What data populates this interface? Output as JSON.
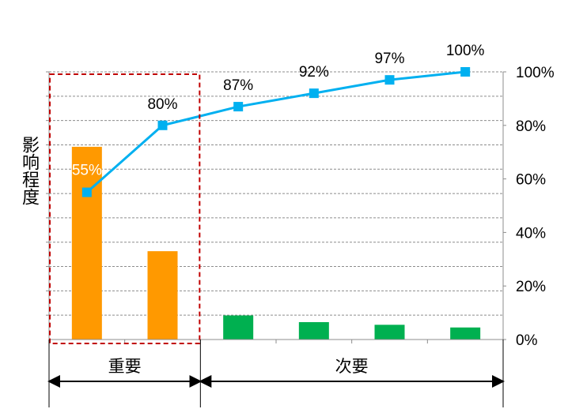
{
  "chart_data": {
    "type": "bar",
    "categories": [
      "",
      "",
      "",
      "",
      "",
      ""
    ],
    "values": [
      72,
      33,
      9,
      6.5,
      5.5,
      4.5
    ],
    "bar_colors": [
      "#ff9900",
      "#ff9900",
      "#00b050",
      "#00b050",
      "#00b050",
      "#00b050"
    ],
    "ylabel": "影响程度",
    "ylim": [
      0,
      100
    ],
    "grid": true,
    "series": [
      {
        "name": "",
        "type": "line",
        "axis": "right",
        "color": "#00b0f0",
        "values": [
          55,
          80,
          87,
          92,
          97,
          100
        ],
        "labels": [
          "55%",
          "80%",
          "87%",
          "92%",
          "97%",
          "100%"
        ]
      }
    ],
    "y2_ticks": [
      "0%",
      "20%",
      "40%",
      "60%",
      "80%",
      "100%"
    ],
    "y2lim": [
      0,
      100
    ],
    "groups": [
      {
        "label": "重要",
        "from": 0,
        "to": 1,
        "highlight_color": "#c00000"
      },
      {
        "label": "次要",
        "from": 2,
        "to": 5
      }
    ]
  }
}
